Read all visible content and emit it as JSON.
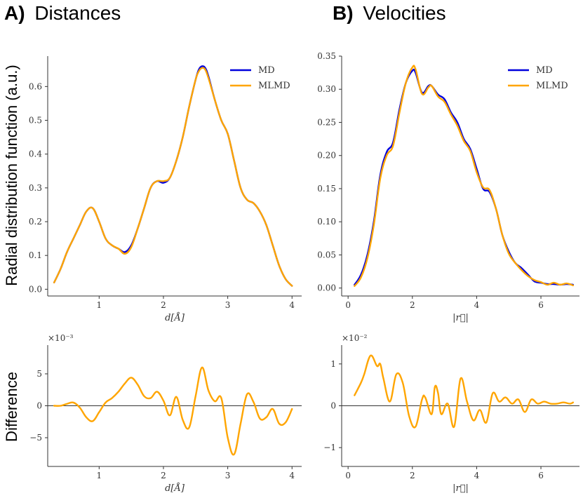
{
  "titles": {
    "a_letter": "A)",
    "a_text": "Distances",
    "b_letter": "B)",
    "b_text": "Velocities",
    "ylabel_top": "Radial distribution function (a.u.)",
    "ylabel_bottom": "Difference"
  },
  "colors": {
    "md": "#0000dd",
    "mlmd": "#ffa500",
    "zero": "#333333"
  },
  "chart_data": [
    {
      "id": "a_top",
      "type": "line",
      "xlabel": "d[Å]",
      "ylabel": "Radial distribution function (a.u.)",
      "xlim": [
        0.2,
        4.15
      ],
      "ylim": [
        -0.02,
        0.69
      ],
      "xticks": [
        1,
        2,
        3,
        4
      ],
      "yticks": [
        0.0,
        0.1,
        0.2,
        0.3,
        0.4,
        0.5,
        0.6
      ],
      "ytick_labels": [
        "0.0",
        "0.1",
        "0.2",
        "0.3",
        "0.4",
        "0.5",
        "0.6"
      ],
      "legend": [
        "MD",
        "MLMD"
      ],
      "legend_position": "top-right",
      "x": [
        0.3,
        0.4,
        0.5,
        0.6,
        0.7,
        0.8,
        0.9,
        1.0,
        1.1,
        1.2,
        1.3,
        1.4,
        1.5,
        1.6,
        1.7,
        1.8,
        1.9,
        2.0,
        2.1,
        2.2,
        2.3,
        2.4,
        2.5,
        2.55,
        2.6,
        2.65,
        2.7,
        2.8,
        2.9,
        3.0,
        3.1,
        3.2,
        3.3,
        3.4,
        3.5,
        3.6,
        3.7,
        3.8,
        3.9,
        4.0
      ],
      "series": [
        {
          "name": "MD",
          "values": [
            0.02,
            0.06,
            0.11,
            0.15,
            0.19,
            0.23,
            0.24,
            0.2,
            0.15,
            0.13,
            0.12,
            0.11,
            0.13,
            0.18,
            0.24,
            0.3,
            0.32,
            0.315,
            0.33,
            0.38,
            0.45,
            0.54,
            0.62,
            0.65,
            0.66,
            0.655,
            0.63,
            0.56,
            0.5,
            0.46,
            0.38,
            0.3,
            0.265,
            0.255,
            0.23,
            0.19,
            0.13,
            0.07,
            0.03,
            0.01
          ]
        },
        {
          "name": "MLMD",
          "values": [
            0.02,
            0.06,
            0.11,
            0.15,
            0.19,
            0.23,
            0.24,
            0.2,
            0.15,
            0.13,
            0.12,
            0.105,
            0.125,
            0.18,
            0.24,
            0.3,
            0.32,
            0.32,
            0.33,
            0.38,
            0.45,
            0.54,
            0.62,
            0.645,
            0.655,
            0.65,
            0.625,
            0.56,
            0.5,
            0.46,
            0.38,
            0.3,
            0.265,
            0.255,
            0.23,
            0.19,
            0.13,
            0.07,
            0.03,
            0.01
          ]
        }
      ]
    },
    {
      "id": "b_top",
      "type": "line",
      "xlabel": "|r⃗|",
      "ylabel": "",
      "xlim": [
        -0.2,
        7.2
      ],
      "ylim": [
        -0.012,
        0.35
      ],
      "xticks": [
        0,
        2,
        4,
        6
      ],
      "yticks": [
        0.0,
        0.05,
        0.1,
        0.15,
        0.2,
        0.25,
        0.3,
        0.35
      ],
      "ytick_labels": [
        "0.00",
        "0.05",
        "0.10",
        "0.15",
        "0.20",
        "0.25",
        "0.30",
        "0.35"
      ],
      "legend": [
        "MD",
        "MLMD"
      ],
      "legend_position": "top-right",
      "x": [
        0.2,
        0.4,
        0.6,
        0.8,
        1.0,
        1.2,
        1.4,
        1.6,
        1.8,
        2.0,
        2.1,
        2.3,
        2.5,
        2.6,
        2.8,
        3.0,
        3.2,
        3.4,
        3.6,
        3.8,
        4.0,
        4.2,
        4.4,
        4.6,
        4.8,
        5.0,
        5.2,
        5.4,
        5.6,
        5.8,
        6.0,
        6.2,
        6.4,
        6.6,
        6.8,
        7.0
      ],
      "series": [
        {
          "name": "MD",
          "values": [
            0.005,
            0.02,
            0.05,
            0.1,
            0.17,
            0.205,
            0.22,
            0.27,
            0.31,
            0.328,
            0.325,
            0.295,
            0.305,
            0.305,
            0.292,
            0.285,
            0.265,
            0.25,
            0.225,
            0.21,
            0.18,
            0.15,
            0.145,
            0.12,
            0.08,
            0.055,
            0.038,
            0.03,
            0.02,
            0.01,
            0.008,
            0.006,
            0.006,
            0.005,
            0.006,
            0.005
          ]
        },
        {
          "name": "MLMD",
          "values": [
            0.003,
            0.016,
            0.045,
            0.095,
            0.165,
            0.2,
            0.215,
            0.265,
            0.31,
            0.333,
            0.33,
            0.293,
            0.303,
            0.305,
            0.289,
            0.281,
            0.262,
            0.245,
            0.222,
            0.207,
            0.175,
            0.152,
            0.148,
            0.12,
            0.08,
            0.052,
            0.038,
            0.027,
            0.018,
            0.012,
            0.009,
            0.005,
            0.008,
            0.005,
            0.007,
            0.004
          ]
        }
      ]
    },
    {
      "id": "a_bottom",
      "type": "line",
      "xlabel": "d[Å]",
      "ylabel": "Difference",
      "multiplier": "×10⁻³",
      "xlim": [
        0.2,
        4.15
      ],
      "ylim": [
        -9.5,
        9.5
      ],
      "xticks": [
        1,
        2,
        3,
        4
      ],
      "yticks": [
        -5,
        0,
        5
      ],
      "ytick_labels": [
        "−5",
        "0",
        "5"
      ],
      "x": [
        0.3,
        0.4,
        0.5,
        0.6,
        0.7,
        0.8,
        0.9,
        1.0,
        1.1,
        1.2,
        1.3,
        1.4,
        1.5,
        1.6,
        1.7,
        1.8,
        1.9,
        2.0,
        2.1,
        2.2,
        2.3,
        2.4,
        2.5,
        2.6,
        2.7,
        2.8,
        2.9,
        3.0,
        3.1,
        3.2,
        3.3,
        3.4,
        3.5,
        3.6,
        3.7,
        3.8,
        3.9,
        4.0
      ],
      "series": [
        {
          "name": "Difference",
          "values": [
            0,
            0,
            0.3,
            0.5,
            -0.3,
            -1.8,
            -2.4,
            -1.0,
            0.5,
            1.2,
            2.2,
            3.5,
            4.4,
            3.3,
            1.5,
            1.2,
            2.2,
            0.8,
            -1.5,
            1.4,
            -2.2,
            -3.4,
            1.5,
            6.0,
            2.4,
            0.7,
            1.2,
            -5.0,
            -7.6,
            -2.8,
            1.8,
            0.6,
            -2.0,
            -1.8,
            -0.5,
            -2.8,
            -2.6,
            -0.5
          ]
        }
      ]
    },
    {
      "id": "b_bottom",
      "type": "line",
      "xlabel": "|r⃗|",
      "ylabel": "",
      "multiplier": "×10⁻²",
      "xlim": [
        -0.2,
        7.2
      ],
      "ylim": [
        -1.45,
        1.45
      ],
      "xticks": [
        0,
        2,
        4,
        6
      ],
      "yticks": [
        -1,
        0,
        1
      ],
      "ytick_labels": [
        "−1",
        "0",
        "1"
      ],
      "x": [
        0.2,
        0.4,
        0.5,
        0.7,
        0.9,
        1.0,
        1.1,
        1.3,
        1.5,
        1.7,
        1.9,
        2.1,
        2.3,
        2.4,
        2.6,
        2.7,
        2.8,
        2.9,
        3.1,
        3.3,
        3.5,
        3.7,
        3.9,
        4.1,
        4.3,
        4.5,
        4.7,
        4.9,
        5.1,
        5.3,
        5.5,
        5.7,
        5.9,
        6.1,
        6.3,
        6.5,
        6.7,
        6.9,
        7.0
      ],
      "series": [
        {
          "name": "Difference",
          "values": [
            0.25,
            0.55,
            0.75,
            1.2,
            0.95,
            1.0,
            0.65,
            0.1,
            0.75,
            0.55,
            -0.25,
            -0.5,
            0.15,
            0.2,
            -0.2,
            0.45,
            0.3,
            -0.2,
            0.05,
            -0.5,
            0.65,
            0.1,
            -0.35,
            -0.1,
            -0.4,
            0.3,
            0.1,
            0.2,
            0.05,
            0.15,
            -0.15,
            0.15,
            0.05,
            0.1,
            0.05,
            0.05,
            0.08,
            0.05,
            0.08
          ]
        }
      ]
    }
  ]
}
